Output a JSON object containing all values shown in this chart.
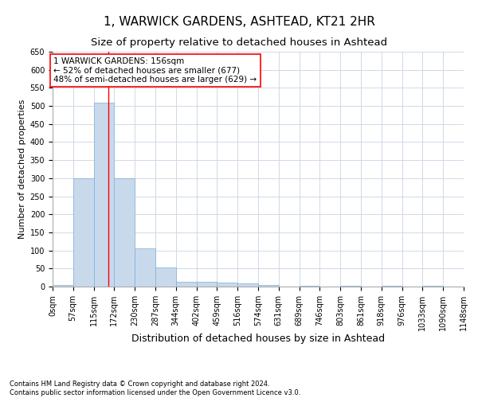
{
  "title": "1, WARWICK GARDENS, ASHTEAD, KT21 2HR",
  "subtitle": "Size of property relative to detached houses in Ashtead",
  "xlabel": "Distribution of detached houses by size in Ashtead",
  "ylabel": "Number of detached properties",
  "bar_color": "#c9d9ec",
  "bar_edgecolor": "#7bafd4",
  "grid_color": "#d0d8e8",
  "background_color": "#ffffff",
  "bin_edges": [
    0,
    57,
    115,
    172,
    230,
    287,
    344,
    402,
    459,
    516,
    574,
    631,
    689,
    746,
    803,
    861,
    918,
    976,
    1033,
    1090,
    1148
  ],
  "bar_heights": [
    5,
    300,
    510,
    300,
    105,
    53,
    13,
    13,
    12,
    8,
    5,
    0,
    3,
    0,
    3,
    0,
    3,
    0,
    3,
    0
  ],
  "property_size": 156,
  "ylim": [
    0,
    650
  ],
  "yticks": [
    0,
    50,
    100,
    150,
    200,
    250,
    300,
    350,
    400,
    450,
    500,
    550,
    600,
    650
  ],
  "annotation_text": "1 WARWICK GARDENS: 156sqm\n← 52% of detached houses are smaller (677)\n48% of semi-detached houses are larger (629) →",
  "footnote": "Contains HM Land Registry data © Crown copyright and database right 2024.\nContains public sector information licensed under the Open Government Licence v3.0.",
  "title_fontsize": 11,
  "subtitle_fontsize": 9.5,
  "xlabel_fontsize": 9,
  "ylabel_fontsize": 8,
  "tick_fontsize": 7,
  "annot_fontsize": 7.5,
  "footnote_fontsize": 6
}
